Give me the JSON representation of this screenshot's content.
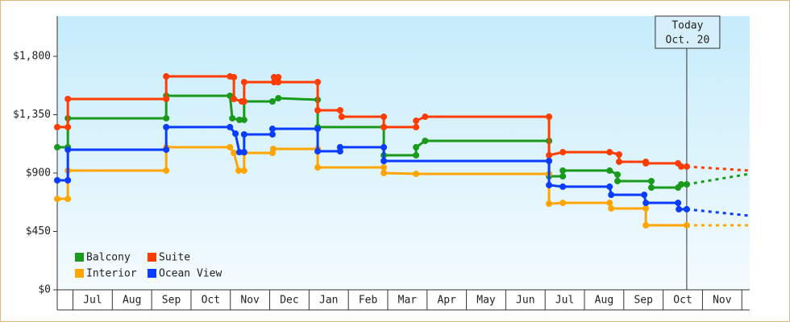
{
  "chart_data": {
    "type": "line",
    "xlim": [
      -0.4,
      17.2
    ],
    "ylim": [
      0,
      2110
    ],
    "yticks": [
      {
        "value": 0,
        "label": "$0"
      },
      {
        "value": 450,
        "label": "$450"
      },
      {
        "value": 900,
        "label": "$900"
      },
      {
        "value": 1350,
        "label": "$1,350"
      },
      {
        "value": 1800,
        "label": "$1,800"
      }
    ],
    "xticks": [
      {
        "value": 0.5,
        "label": "Jul"
      },
      {
        "value": 1.5,
        "label": "Aug"
      },
      {
        "value": 2.5,
        "label": "Sep"
      },
      {
        "value": 3.5,
        "label": "Oct"
      },
      {
        "value": 4.5,
        "label": "Nov"
      },
      {
        "value": 5.5,
        "label": "Dec"
      },
      {
        "value": 6.5,
        "label": "Jan"
      },
      {
        "value": 7.5,
        "label": "Feb"
      },
      {
        "value": 8.5,
        "label": "Mar"
      },
      {
        "value": 9.5,
        "label": "Apr"
      },
      {
        "value": 10.5,
        "label": "May"
      },
      {
        "value": 11.5,
        "label": "Jun"
      },
      {
        "value": 12.5,
        "label": "Jul"
      },
      {
        "value": 13.5,
        "label": "Aug"
      },
      {
        "value": 14.5,
        "label": "Sep"
      },
      {
        "value": 15.5,
        "label": "Oct"
      },
      {
        "value": 16.5,
        "label": "Nov"
      }
    ],
    "annotation": {
      "x": 15.6,
      "text": [
        "Today",
        "Oct. 20"
      ]
    },
    "legend": "lower left",
    "series": [
      {
        "name": "Balcony",
        "color": "#1a9a1a",
        "x": [
          -0.4,
          -0.13,
          -0.13,
          2.37,
          2.37,
          3.99,
          4.05,
          4.23,
          4.35,
          4.35,
          5.07,
          5.22,
          6.22,
          6.22,
          7.9,
          7.9,
          8.72,
          8.72,
          8.95,
          12.1,
          12.1,
          12.45,
          12.45,
          13.64,
          13.84,
          13.84,
          14.7,
          14.7,
          15.38,
          15.46,
          15.6
        ],
        "values": [
          1099,
          1099,
          1322,
          1322,
          1496,
          1496,
          1322,
          1310,
          1310,
          1452,
          1452,
          1477,
          1465,
          1254,
          1254,
          1037,
          1037,
          1099,
          1148,
          1148,
          875,
          875,
          919,
          919,
          888,
          838,
          838,
          788,
          788,
          813,
          813
        ],
        "forecast": 894
      },
      {
        "name": "Suite",
        "color": "#ff3d00",
        "x": [
          -0.4,
          -0.13,
          -0.13,
          2.37,
          2.37,
          3.99,
          4.09,
          4.09,
          4.29,
          4.35,
          4.35,
          5.11,
          5.11,
          5.22,
          5.22,
          6.22,
          6.22,
          6.79,
          6.83,
          7.9,
          7.9,
          8.72,
          8.72,
          8.95,
          12.1,
          12.1,
          12.45,
          13.64,
          13.88,
          13.88,
          14.56,
          14.56,
          15.38,
          15.46,
          15.6
        ],
        "values": [
          1254,
          1254,
          1471,
          1471,
          1645,
          1645,
          1639,
          1471,
          1452,
          1452,
          1601,
          1601,
          1639,
          1639,
          1601,
          1601,
          1384,
          1384,
          1334,
          1334,
          1254,
          1254,
          1303,
          1334,
          1334,
          1037,
          1061,
          1061,
          1043,
          987,
          987,
          975,
          975,
          950,
          950
        ],
        "forecast": 919
      },
      {
        "name": "Interior",
        "color": "#ffa500",
        "x": [
          -0.4,
          -0.13,
          -0.13,
          2.37,
          2.37,
          3.99,
          4.09,
          4.21,
          4.35,
          4.35,
          5.07,
          5.09,
          6.22,
          6.22,
          7.9,
          7.9,
          8.72,
          12.1,
          12.1,
          12.45,
          13.64,
          13.68,
          14.56,
          14.56,
          15.6
        ],
        "values": [
          701,
          701,
          919,
          919,
          1099,
          1099,
          1055,
          919,
          919,
          1055,
          1055,
          1086,
          1086,
          943,
          943,
          900,
          894,
          894,
          664,
          670,
          670,
          627,
          627,
          497,
          497
        ],
        "forecast": 497
      },
      {
        "name": "Ocean View",
        "color": "#0a3cff",
        "x": [
          -0.4,
          -0.13,
          -0.13,
          2.37,
          2.37,
          3.99,
          4.13,
          4.23,
          4.35,
          4.35,
          5.07,
          5.07,
          6.22,
          6.22,
          6.79,
          6.79,
          7.9,
          7.9,
          12.1,
          12.1,
          12.45,
          13.64,
          13.68,
          14.52,
          14.56,
          15.38,
          15.4,
          15.6
        ],
        "values": [
          844,
          844,
          1080,
          1080,
          1254,
          1254,
          1204,
          1061,
          1061,
          1198,
          1198,
          1241,
          1241,
          1068,
          1068,
          1099,
          1099,
          993,
          993,
          807,
          795,
          795,
          732,
          732,
          670,
          670,
          621,
          621
        ],
        "forecast": 571
      }
    ]
  }
}
